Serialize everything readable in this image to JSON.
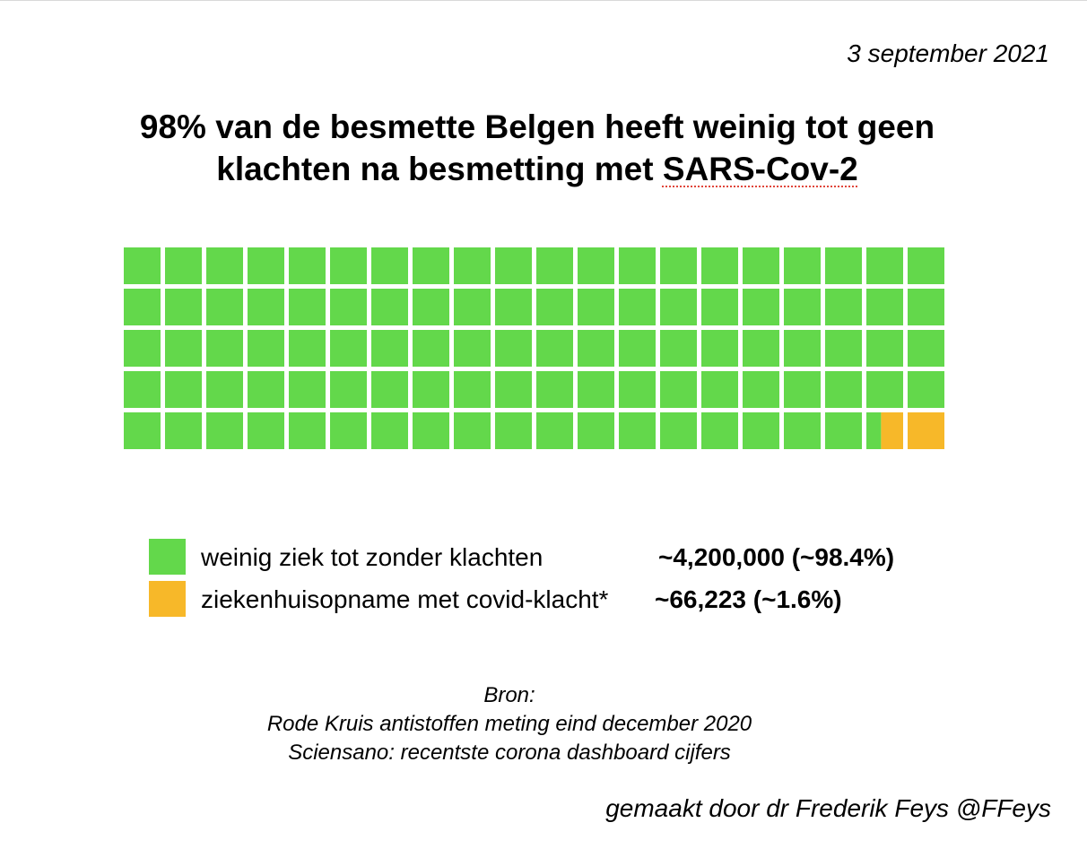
{
  "date": "3 september 2021",
  "title": {
    "line1": "98% van de besmette Belgen heeft weinig tot geen",
    "line2_prefix": "klachten na besmetting met ",
    "line2_term": "SARS-Cov-2"
  },
  "colors": {
    "green": "#63d84b",
    "orange": "#f7b829"
  },
  "chart_data": {
    "type": "waffle",
    "rows": 5,
    "columns": 20,
    "units": 100,
    "series": [
      {
        "name": "weinig ziek tot zonder klachten",
        "value": 4200000,
        "percent": 98.4,
        "color": "#63d84b"
      },
      {
        "name": "ziekenhuisopname met covid-klacht*",
        "value": 66223,
        "percent": 1.6,
        "color": "#f7b829"
      }
    ],
    "legend": [
      {
        "label": "weinig ziek tot zonder klachten",
        "value_text": "~4,200,000 (~98.4%)",
        "color": "#63d84b"
      },
      {
        "label": "ziekenhuisopname met covid-klacht*",
        "value_text": "~66,223 (~1.6%)",
        "color": "#f7b829"
      }
    ]
  },
  "source": {
    "heading": "Bron:",
    "line1": "Rode Kruis antistoffen meting eind december 2020",
    "line2": "Sciensano: recentste corona dashboard cijfers"
  },
  "credit": "gemaakt door dr Frederik Feys @FFeys"
}
